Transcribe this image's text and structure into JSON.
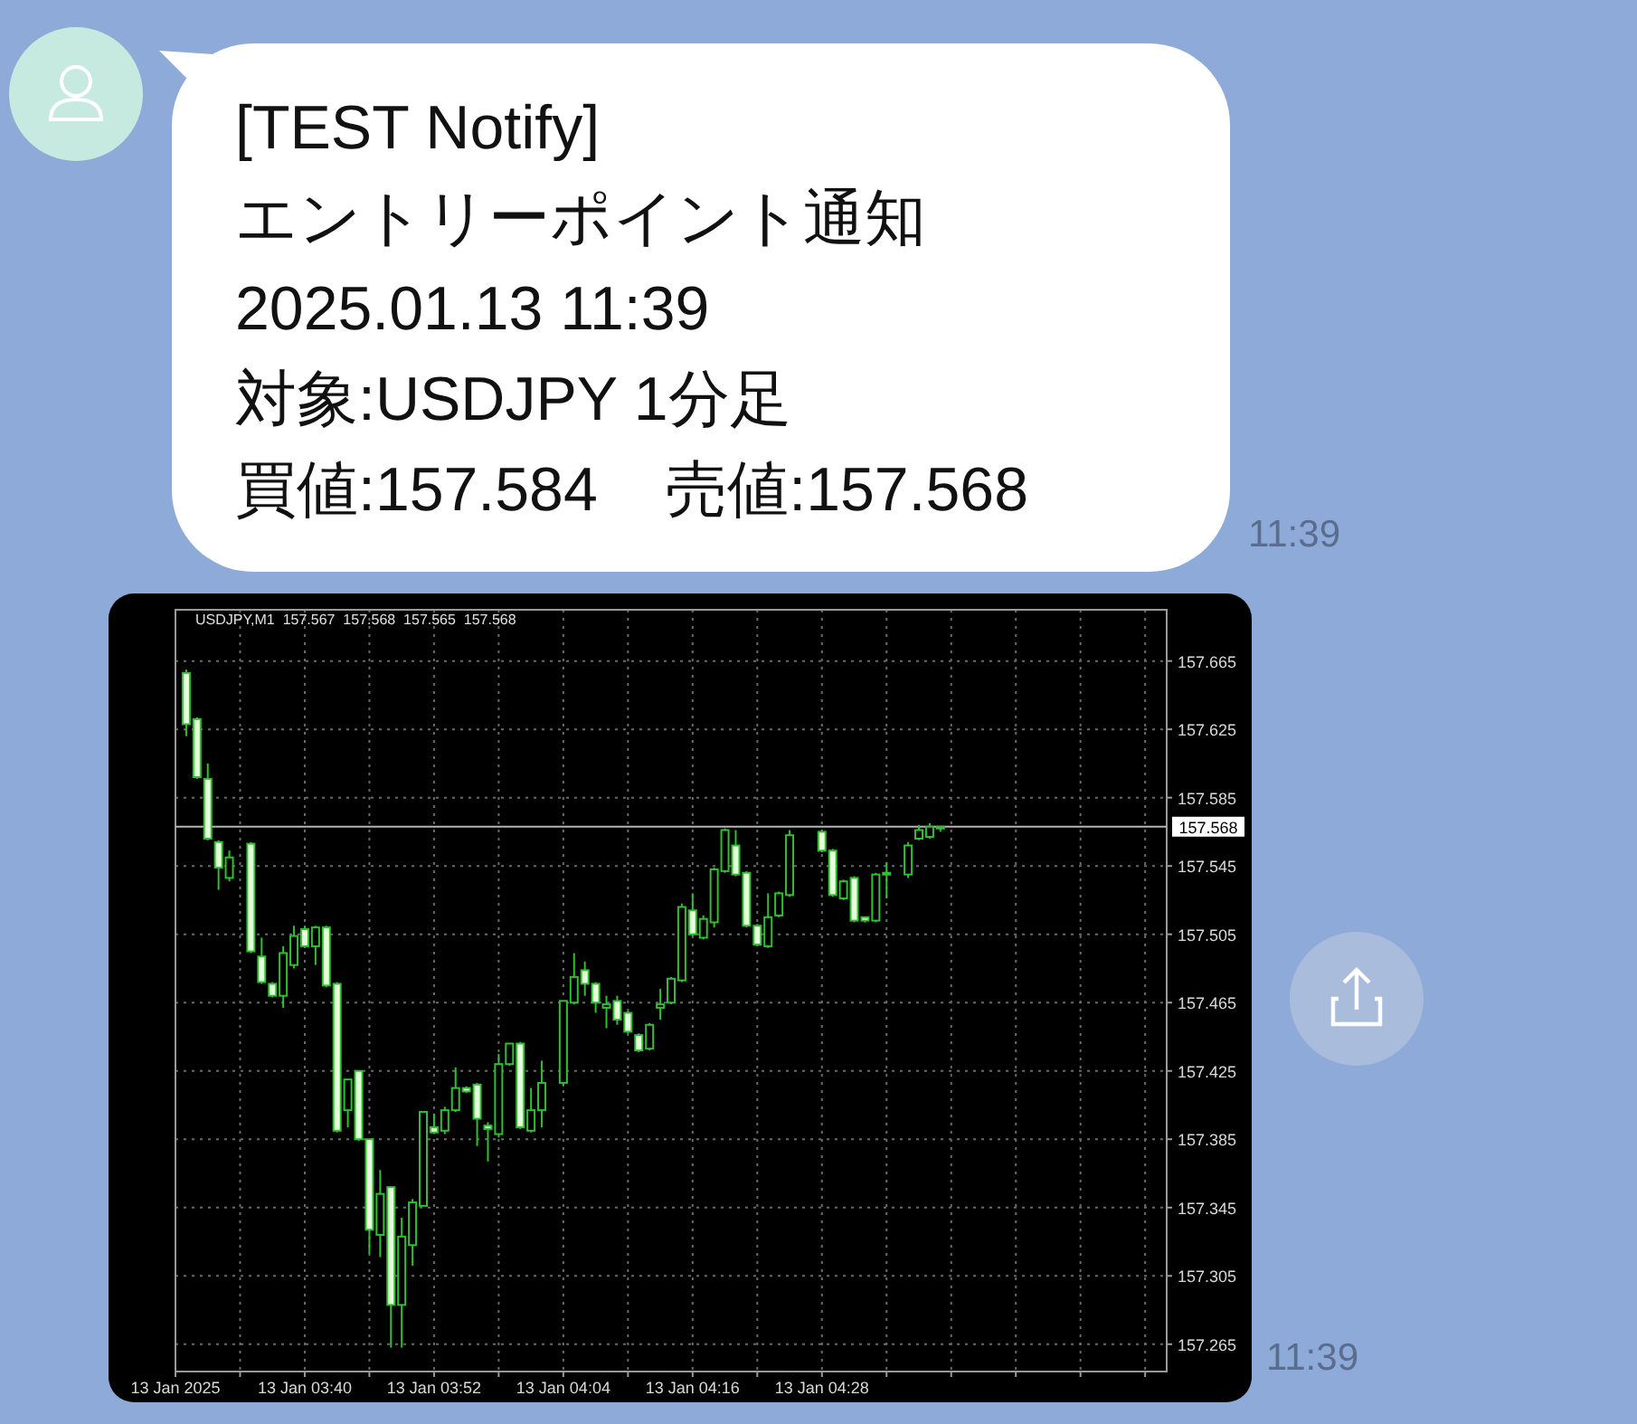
{
  "chart_data": {
    "type": "candlestick",
    "title": "[TEST Notify]",
    "subtitle": "エントリーポイント通知",
    "annotations": [
      "2025.01.13 11:39",
      "対象:USDJPY 1分足",
      "買値:157.584    売値:157.568",
      "11:39",
      "11:39",
      "USDJPY,M1  157.567  157.568  157.565  157.568"
    ],
    "xlim": [
      "2025-01-13T03:28",
      "2025-01-13T05:00"
    ],
    "xticks": [
      {
        "value": "2025-01-13T03:28",
        "label": "13 Jan 2025"
      },
      {
        "value": "2025-01-13T03:34",
        "label": null
      },
      {
        "value": "2025-01-13T03:40",
        "label": "13 Jan 03:40"
      },
      {
        "value": "2025-01-13T03:46",
        "label": null
      },
      {
        "value": "2025-01-13T03:52",
        "label": "13 Jan 03:52"
      },
      {
        "value": "2025-01-13T03:58",
        "label": null
      },
      {
        "value": "2025-01-13T04:04",
        "label": "13 Jan 04:04"
      },
      {
        "value": "2025-01-13T04:10",
        "label": null
      },
      {
        "value": "2025-01-13T04:16",
        "label": "13 Jan 04:16"
      },
      {
        "value": "2025-01-13T04:22",
        "label": null
      },
      {
        "value": "2025-01-13T04:28",
        "label": "13 Jan 04:28"
      },
      {
        "value": "2025-01-13T04:34",
        "label": null
      },
      {
        "value": "2025-01-13T04:40",
        "label": null
      },
      {
        "value": "2025-01-13T04:46",
        "label": null
      },
      {
        "value": "2025-01-13T04:52",
        "label": null
      },
      {
        "value": "2025-01-13T04:58",
        "label": null
      }
    ],
    "ylim": [
      157.249,
      157.695
    ],
    "yticks": [
      157.265,
      157.305,
      157.345,
      157.385,
      157.425,
      157.465,
      157.505,
      157.545,
      157.585,
      157.625,
      157.665
    ],
    "grid": true,
    "ref_lines": [
      {
        "axis": "y",
        "value": 157.568,
        "label": "157.568",
        "color": "#b4b4b4"
      }
    ],
    "series": [
      {
        "color": "#2fbf2f",
        "x": [
          "2025-01-13T03:29",
          "2025-01-13T03:30",
          "2025-01-13T03:31",
          "2025-01-13T03:32",
          "2025-01-13T03:33",
          "2025-01-13T03:35",
          "2025-01-13T03:36",
          "2025-01-13T03:37",
          "2025-01-13T03:38",
          "2025-01-13T03:39",
          "2025-01-13T03:40",
          "2025-01-13T03:41",
          "2025-01-13T03:42",
          "2025-01-13T03:43",
          "2025-01-13T03:44",
          "2025-01-13T03:45",
          "2025-01-13T03:46",
          "2025-01-13T03:47",
          "2025-01-13T03:48",
          "2025-01-13T03:49",
          "2025-01-13T03:50",
          "2025-01-13T03:51",
          "2025-01-13T03:52",
          "2025-01-13T03:53",
          "2025-01-13T03:54",
          "2025-01-13T03:55",
          "2025-01-13T03:56",
          "2025-01-13T03:57",
          "2025-01-13T03:58",
          "2025-01-13T03:59",
          "2025-01-13T04:00",
          "2025-01-13T04:01",
          "2025-01-13T04:02",
          "2025-01-13T04:04",
          "2025-01-13T04:05",
          "2025-01-13T04:06",
          "2025-01-13T04:07",
          "2025-01-13T04:08",
          "2025-01-13T04:09",
          "2025-01-13T04:10",
          "2025-01-13T04:11",
          "2025-01-13T04:12",
          "2025-01-13T04:13",
          "2025-01-13T04:14",
          "2025-01-13T04:15",
          "2025-01-13T04:16",
          "2025-01-13T04:17",
          "2025-01-13T04:18",
          "2025-01-13T04:19",
          "2025-01-13T04:20",
          "2025-01-13T04:21",
          "2025-01-13T04:22",
          "2025-01-13T04:23",
          "2025-01-13T04:24",
          "2025-01-13T04:25",
          "2025-01-13T04:28",
          "2025-01-13T04:29",
          "2025-01-13T04:30",
          "2025-01-13T04:31",
          "2025-01-13T04:32",
          "2025-01-13T04:33",
          "2025-01-13T04:34",
          "2025-01-13T04:36",
          "2025-01-13T04:37",
          "2025-01-13T04:38",
          "2025-01-13T04:39"
        ],
        "ohlc": [
          [
            157.658,
            157.66,
            157.621,
            157.628
          ],
          [
            157.631,
            157.632,
            157.596,
            157.597
          ],
          [
            157.596,
            157.605,
            157.56,
            157.561
          ],
          [
            157.559,
            157.56,
            157.531,
            157.544
          ],
          [
            157.538,
            157.554,
            157.536,
            157.55
          ],
          [
            157.558,
            157.559,
            157.494,
            157.495
          ],
          [
            157.492,
            157.503,
            157.476,
            157.477
          ],
          [
            157.476,
            157.477,
            157.468,
            157.469
          ],
          [
            157.469,
            157.498,
            157.462,
            157.494
          ],
          [
            157.487,
            157.51,
            157.485,
            157.504
          ],
          [
            157.508,
            157.51,
            157.497,
            157.498
          ],
          [
            157.498,
            157.51,
            157.487,
            157.509
          ],
          [
            157.509,
            157.51,
            157.474,
            157.475
          ],
          [
            157.476,
            157.477,
            157.389,
            157.39
          ],
          [
            157.402,
            157.42,
            157.392,
            157.42
          ],
          [
            157.425,
            157.425,
            157.384,
            157.385
          ],
          [
            157.385,
            157.385,
            157.318,
            157.332
          ],
          [
            157.329,
            157.367,
            157.316,
            157.353
          ],
          [
            157.357,
            157.357,
            157.263,
            157.288
          ],
          [
            157.288,
            157.339,
            157.263,
            157.328
          ],
          [
            157.323,
            157.35,
            157.311,
            157.348
          ],
          [
            157.346,
            157.401,
            157.346,
            157.401
          ],
          [
            157.392,
            157.4,
            157.388,
            157.389
          ],
          [
            157.39,
            157.404,
            157.388,
            157.402
          ],
          [
            157.402,
            157.427,
            157.401,
            157.415
          ],
          [
            157.415,
            157.416,
            157.412,
            157.413
          ],
          [
            157.417,
            157.418,
            157.381,
            157.397
          ],
          [
            157.393,
            157.395,
            157.372,
            157.391
          ],
          [
            157.388,
            157.435,
            157.386,
            157.429
          ],
          [
            157.429,
            157.441,
            157.428,
            157.441
          ],
          [
            157.441,
            157.442,
            157.391,
            157.392
          ],
          [
            157.39,
            157.415,
            157.389,
            157.402
          ],
          [
            157.402,
            157.431,
            157.392,
            157.418
          ],
          [
            157.418,
            157.466,
            157.416,
            157.466
          ],
          [
            157.465,
            157.494,
            157.464,
            157.48
          ],
          [
            157.484,
            157.489,
            157.469,
            157.476
          ],
          [
            157.476,
            157.477,
            157.459,
            157.465
          ],
          [
            157.462,
            157.469,
            157.45,
            157.464
          ],
          [
            157.466,
            157.469,
            157.452,
            157.455
          ],
          [
            157.459,
            157.46,
            157.447,
            157.448
          ],
          [
            157.446,
            157.447,
            157.436,
            157.437
          ],
          [
            157.438,
            157.453,
            157.437,
            157.452
          ],
          [
            157.462,
            157.473,
            157.455,
            157.464
          ],
          [
            157.465,
            157.48,
            157.464,
            157.479
          ],
          [
            157.478,
            157.523,
            157.477,
            157.521
          ],
          [
            157.519,
            157.529,
            157.504,
            157.505
          ],
          [
            157.503,
            157.516,
            157.502,
            157.514
          ],
          [
            157.512,
            157.544,
            157.509,
            157.543
          ],
          [
            157.542,
            157.567,
            157.541,
            157.566
          ],
          [
            157.557,
            157.566,
            157.539,
            157.54
          ],
          [
            157.541,
            157.542,
            157.509,
            157.51
          ],
          [
            157.51,
            157.511,
            157.498,
            157.499
          ],
          [
            157.498,
            157.529,
            157.497,
            157.515
          ],
          [
            157.516,
            157.53,
            157.515,
            157.529
          ],
          [
            157.528,
            157.566,
            157.527,
            157.563
          ],
          [
            157.565,
            157.566,
            157.553,
            157.554
          ],
          [
            157.554,
            157.555,
            157.527,
            157.528
          ],
          [
            157.526,
            157.537,
            157.525,
            157.536
          ],
          [
            157.538,
            157.539,
            157.512,
            157.513
          ],
          [
            157.515,
            157.515,
            157.512,
            157.513
          ],
          [
            157.513,
            157.541,
            157.512,
            157.54
          ],
          [
            157.54,
            157.547,
            157.526,
            157.541
          ],
          [
            157.54,
            157.559,
            157.538,
            157.557
          ],
          [
            157.561,
            157.569,
            157.56,
            157.566
          ],
          [
            157.562,
            157.57,
            157.561,
            157.568
          ],
          [
            157.567,
            157.568,
            157.565,
            157.568
          ]
        ]
      }
    ]
  }
}
